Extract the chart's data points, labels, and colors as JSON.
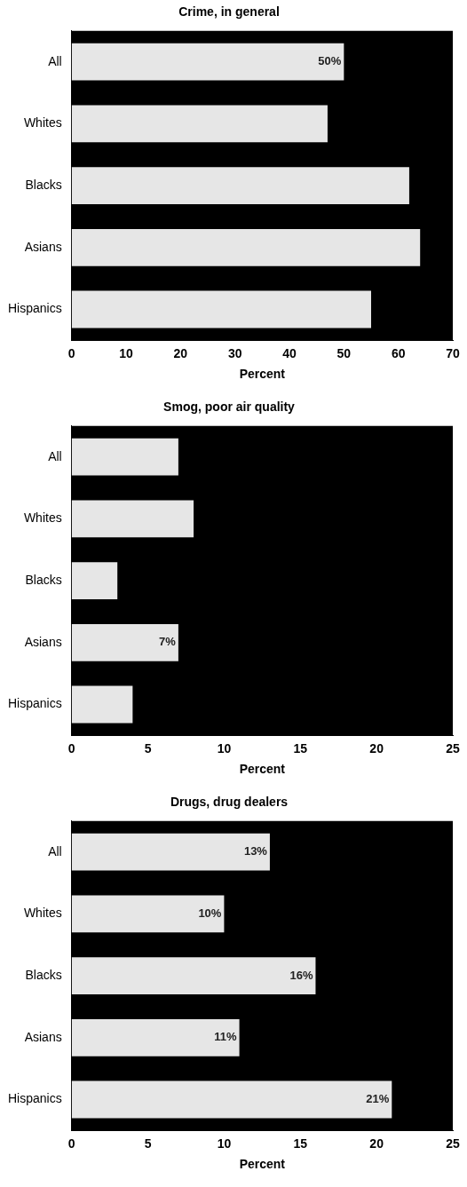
{
  "chart_data": [
    {
      "type": "bar",
      "orientation": "horizontal",
      "title": "Crime, in general",
      "xlabel": "Percent",
      "categories": [
        "All",
        "Whites",
        "Blacks",
        "Asians",
        "Hispanics"
      ],
      "values": [
        50,
        47,
        62,
        64,
        55
      ],
      "value_labels": [
        "50%",
        null,
        null,
        null,
        null
      ],
      "color": "#e6e6e6",
      "xlim": [
        0,
        70
      ],
      "xticks": [
        0,
        10,
        20,
        30,
        40,
        50,
        60,
        70
      ],
      "grid": false,
      "legend": false
    },
    {
      "type": "bar",
      "orientation": "horizontal",
      "title": "Smog, poor air quality",
      "xlabel": "Percent",
      "categories": [
        "All",
        "Whites",
        "Blacks",
        "Asians",
        "Hispanics"
      ],
      "values": [
        7,
        8,
        3,
        7,
        4
      ],
      "value_labels": [
        null,
        null,
        null,
        "7%",
        null
      ],
      "color": "#e6e6e6",
      "xlim": [
        0,
        25
      ],
      "xticks": [
        0,
        5,
        10,
        15,
        20,
        25
      ],
      "grid": false,
      "legend": false
    },
    {
      "type": "bar",
      "orientation": "horizontal",
      "title": "Drugs, drug dealers",
      "xlabel": "Percent",
      "categories": [
        "All",
        "Whites",
        "Blacks",
        "Asians",
        "Hispanics"
      ],
      "values": [
        13,
        10,
        16,
        11,
        21
      ],
      "value_labels": [
        "13%",
        "10%",
        "16%",
        "11%",
        "21%"
      ],
      "color": "#e6e6e6",
      "xlim": [
        0,
        25
      ],
      "xticks": [
        0,
        5,
        10,
        15,
        20,
        25
      ],
      "grid": false,
      "legend": false
    }
  ]
}
